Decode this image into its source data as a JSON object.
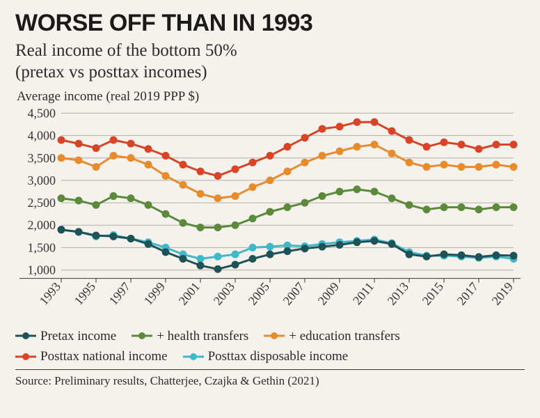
{
  "title": "WORSE OFF THAN IN 1993",
  "subtitle_line1": "Real income of the bottom 50%",
  "subtitle_line2": "(pretax vs posttax incomes)",
  "y_axis_title": "Average income (real 2019 PPP $)",
  "source": "Source: Preliminary results, Chatterjee, Czajka & Gethin (2021)",
  "chart": {
    "type": "line",
    "background_color": "#f5f2ed",
    "grid_color": "#b3aea6",
    "axis_color": "#333333",
    "tick_font_size": 18,
    "tick_color": "#333333",
    "x_years": [
      1993,
      1994,
      1995,
      1996,
      1997,
      1998,
      1999,
      2000,
      2001,
      2002,
      2003,
      2004,
      2005,
      2006,
      2007,
      2008,
      2009,
      2010,
      2011,
      2012,
      2013,
      2014,
      2015,
      2016,
      2017,
      2018,
      2019
    ],
    "x_tick_labels": [
      1993,
      1995,
      1997,
      1999,
      2001,
      2003,
      2005,
      2007,
      2009,
      2011,
      2013,
      2015,
      2017,
      2019
    ],
    "x_ticks_every": 2,
    "ylim": [
      900,
      4600
    ],
    "y_ticks": [
      1000,
      1500,
      2000,
      2500,
      3000,
      3500,
      4000,
      4500
    ],
    "marker_radius": 5,
    "line_width": 3,
    "series": [
      {
        "id": "posttax_national",
        "label": "Posttax national income",
        "color": "#d94426",
        "values": [
          3900,
          3820,
          3720,
          3900,
          3820,
          3700,
          3550,
          3350,
          3200,
          3100,
          3250,
          3400,
          3550,
          3750,
          3950,
          4150,
          4200,
          4300,
          4300,
          4100,
          3900,
          3750,
          3850,
          3800,
          3700,
          3800,
          3800
        ]
      },
      {
        "id": "education_transfers",
        "label": "+ education transfers",
        "color": "#e88b2d",
        "values": [
          3500,
          3450,
          3300,
          3550,
          3500,
          3350,
          3100,
          2900,
          2700,
          2600,
          2650,
          2850,
          3000,
          3200,
          3400,
          3550,
          3650,
          3750,
          3800,
          3600,
          3400,
          3300,
          3350,
          3300,
          3300,
          3350,
          3300
        ]
      },
      {
        "id": "health_transfers",
        "label": "+ health transfers",
        "color": "#5a8a3a",
        "values": [
          2600,
          2550,
          2450,
          2650,
          2600,
          2450,
          2250,
          2050,
          1950,
          1950,
          2000,
          2150,
          2300,
          2400,
          2500,
          2650,
          2750,
          2800,
          2750,
          2600,
          2450,
          2350,
          2400,
          2400,
          2350,
          2400,
          2400
        ]
      },
      {
        "id": "posttax_disposable",
        "label": "Posttax disposable income",
        "color": "#3fb8c9",
        "values": [
          1900,
          1850,
          1750,
          1780,
          1700,
          1620,
          1500,
          1350,
          1250,
          1300,
          1350,
          1500,
          1520,
          1550,
          1530,
          1580,
          1620,
          1650,
          1680,
          1600,
          1400,
          1320,
          1320,
          1300,
          1270,
          1300,
          1250
        ]
      },
      {
        "id": "pretax",
        "label": "Pretax income",
        "color": "#1f5257",
        "values": [
          1900,
          1850,
          1770,
          1750,
          1700,
          1580,
          1400,
          1250,
          1100,
          1020,
          1120,
          1250,
          1350,
          1420,
          1480,
          1520,
          1560,
          1620,
          1650,
          1580,
          1350,
          1300,
          1350,
          1330,
          1290,
          1330,
          1320
        ]
      }
    ],
    "legend_order": [
      "pretax",
      "health_transfers",
      "education_transfers",
      "posttax_national",
      "posttax_disposable"
    ]
  }
}
